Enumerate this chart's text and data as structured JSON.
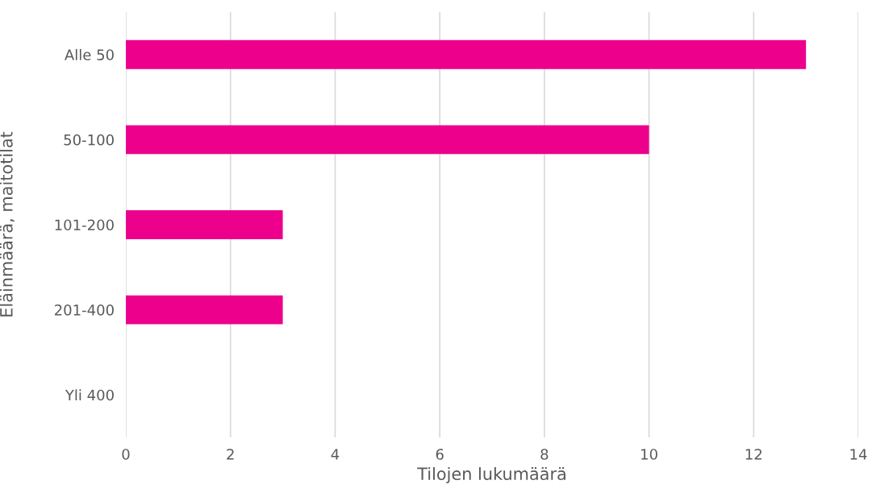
{
  "chart_data": {
    "type": "bar",
    "orientation": "horizontal",
    "xlabel": "Tilojen lukumäärä",
    "ylabel": "Eläinmäärä, maitotilat",
    "categories": [
      "Alle 50",
      "50-100",
      "101-200",
      "201-400",
      "Yli 400"
    ],
    "values": [
      13,
      10,
      3,
      3,
      0
    ],
    "color": "#ec008c",
    "xlim": [
      0,
      14
    ],
    "xticks": [
      0,
      2,
      4,
      6,
      8,
      10,
      12,
      14
    ],
    "grid": "x"
  }
}
